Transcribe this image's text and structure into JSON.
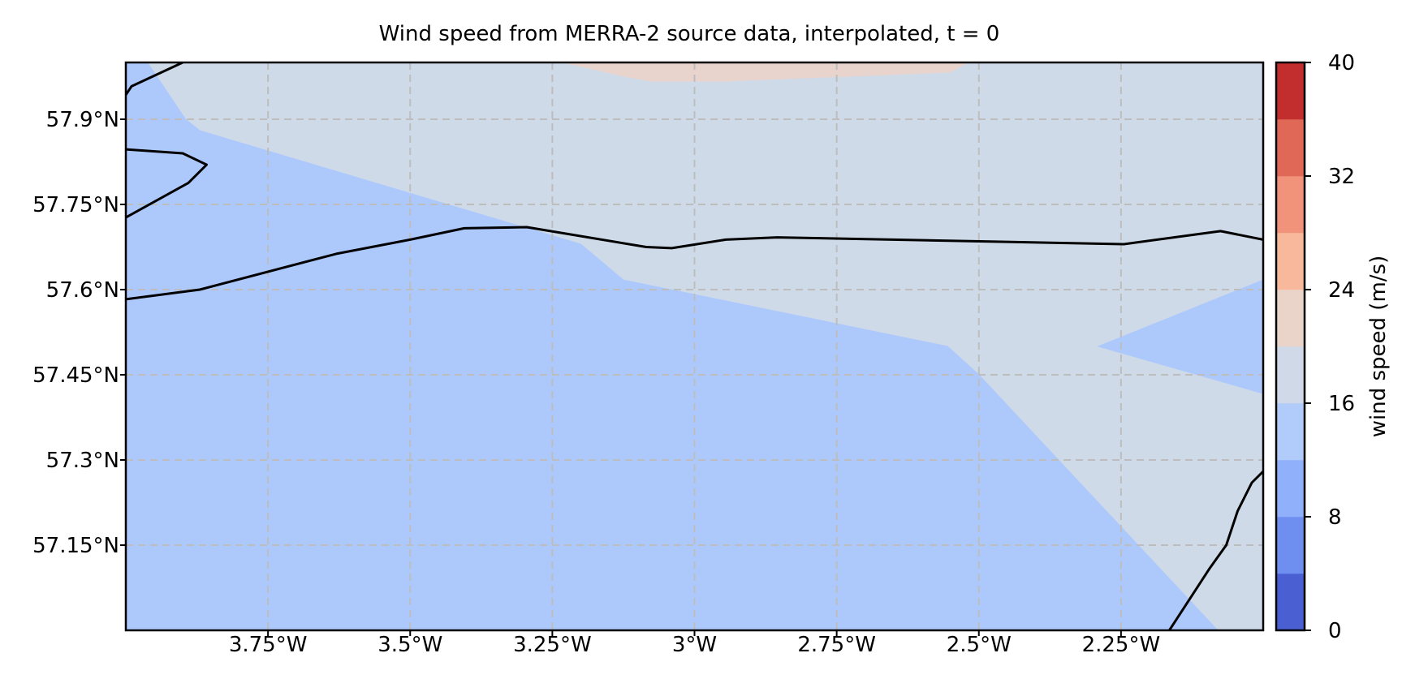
{
  "chart_data": {
    "type": "heatmap",
    "title": "Wind speed from MERRA-2 source data, interpolated, t = 0",
    "xlabel": "",
    "ylabel": "",
    "xlim": [
      -4.0,
      -2.0
    ],
    "ylim": [
      57.0,
      58.0
    ],
    "x_ticks": [
      -3.75,
      -3.5,
      -3.25,
      -3.0,
      -2.75,
      -2.5,
      -2.25
    ],
    "x_tick_labels": [
      "3.75°W",
      "3.5°W",
      "3.25°W",
      "3°W",
      "2.75°W",
      "2.5°W",
      "2.25°W"
    ],
    "y_ticks": [
      57.15,
      57.3,
      57.45,
      57.6,
      57.75,
      57.9
    ],
    "y_tick_labels": [
      "57.15°N",
      "57.3°N",
      "57.45°N",
      "57.6°N",
      "57.75°N",
      "57.9°N"
    ],
    "grid": true,
    "colorbar": {
      "label": "wind speed (m/s)",
      "levels": [
        0,
        4,
        8,
        12,
        16,
        20,
        24,
        28,
        32,
        36,
        40
      ],
      "colors": [
        "#4a5fd2",
        "#6f8ff0",
        "#91b0fb",
        "#b1cbfb",
        "#cfd9e8",
        "#ead4c9",
        "#f7b89c",
        "#f1937a",
        "#df6956",
        "#c22e2e"
      ],
      "ticks": [
        0,
        8,
        16,
        24,
        32,
        40
      ],
      "tick_labels": [
        "0",
        "8",
        "16",
        "24",
        "32",
        "40"
      ]
    },
    "regions": [
      {
        "band": "12-16 m/s",
        "color": "#adc9fc",
        "polygon": [
          [
            -4.0,
            57.0
          ],
          [
            -4.0,
            58.0
          ],
          [
            -3.962,
            58.0
          ],
          [
            -3.895,
            57.9
          ],
          [
            -3.87,
            57.88
          ],
          [
            -3.2,
            57.68
          ],
          [
            -3.125,
            57.617
          ],
          [
            -2.555,
            57.5
          ],
          [
            -2.5,
            57.45
          ],
          [
            -2.08,
            57.0
          ]
        ]
      },
      {
        "band": "12-16 m/s",
        "color": "#adc9fc",
        "polygon": [
          [
            -2.29,
            57.5
          ],
          [
            -2.0,
            57.617
          ],
          [
            -2.0,
            57.417
          ]
        ]
      },
      {
        "band": "20-24 m/s",
        "color": "#e8d4cd",
        "polygon": [
          [
            -3.23,
            58.0
          ],
          [
            -2.52,
            58.0
          ],
          [
            -2.55,
            57.983
          ],
          [
            -2.95,
            57.967
          ],
          [
            -3.075,
            57.967
          ],
          [
            -3.12,
            57.975
          ]
        ]
      }
    ],
    "coastlines": [
      [
        [
          -4.0,
          57.583
        ],
        [
          -3.87,
          57.6
        ],
        [
          -3.63,
          57.663
        ],
        [
          -3.5,
          57.688
        ],
        [
          -3.405,
          57.708
        ],
        [
          -3.295,
          57.71
        ],
        [
          -3.085,
          57.675
        ],
        [
          -3.04,
          57.673
        ],
        [
          -2.945,
          57.688
        ],
        [
          -2.855,
          57.692
        ],
        [
          -2.245,
          57.68
        ],
        [
          -2.075,
          57.703
        ],
        [
          -2.0,
          57.688
        ]
      ],
      [
        [
          -4.0,
          57.727
        ],
        [
          -3.89,
          57.788
        ],
        [
          -3.858,
          57.82
        ],
        [
          -3.9,
          57.84
        ],
        [
          -4.0,
          57.847
        ]
      ],
      [
        [
          -4.0,
          57.943
        ],
        [
          -3.99,
          57.958
        ],
        [
          -3.9,
          58.0
        ]
      ],
      [
        [
          -2.165,
          57.0
        ],
        [
          -2.095,
          57.108
        ],
        [
          -2.065,
          57.15
        ],
        [
          -2.045,
          57.21
        ],
        [
          -2.02,
          57.26
        ],
        [
          -2.0,
          57.28
        ]
      ]
    ]
  }
}
